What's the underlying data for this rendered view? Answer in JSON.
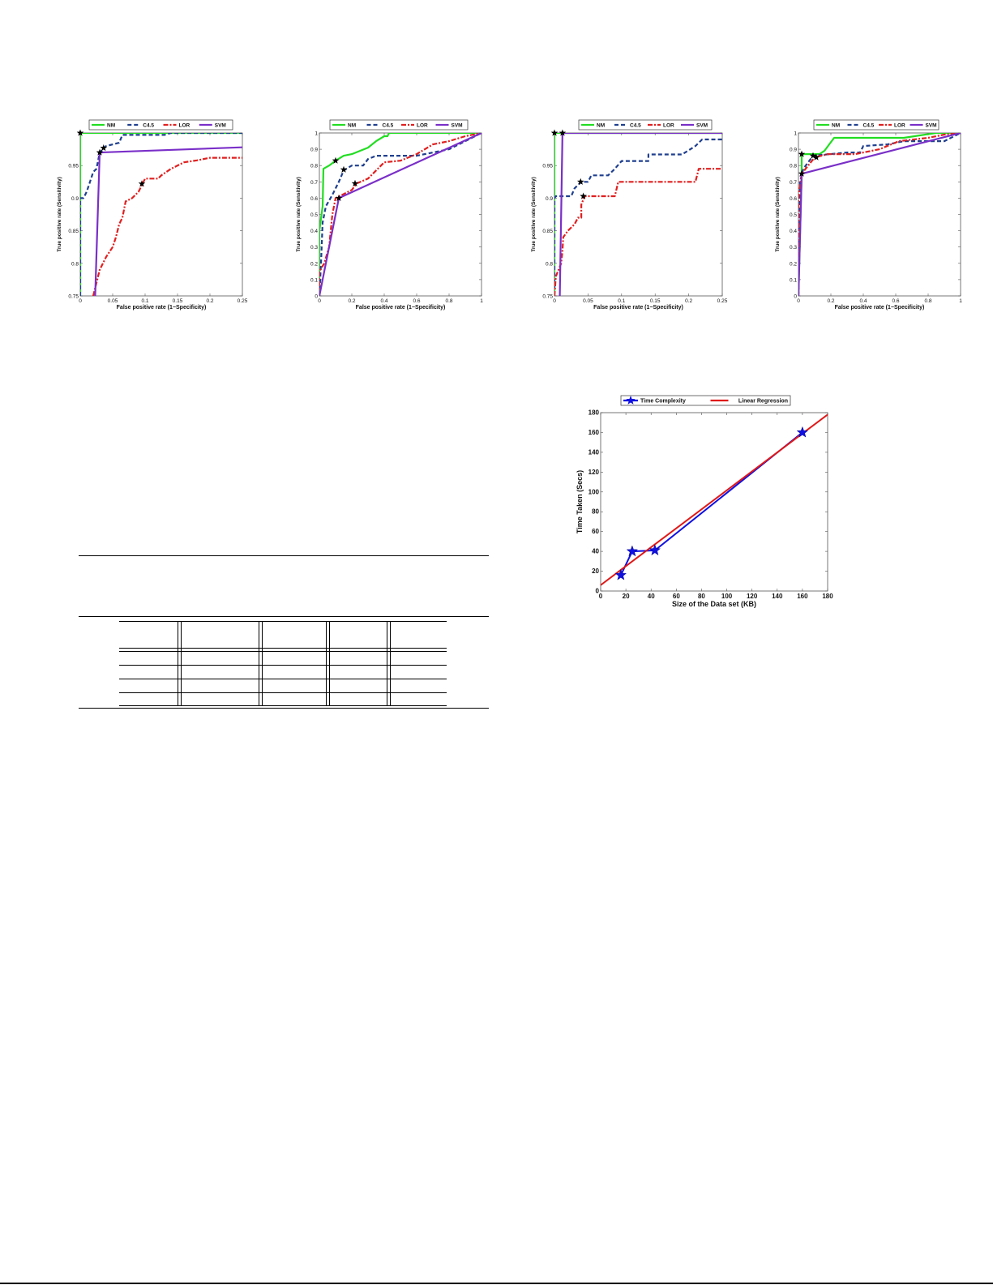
{
  "chart_data": [
    {
      "id": "roc1",
      "type": "line",
      "title": "",
      "xlabel": "False positive rate (1−Specificity)",
      "ylabel": "True positive rate (Sensitivity)",
      "xlim": [
        0,
        0.25
      ],
      "ylim": [
        0.75,
        1
      ],
      "xticks": [
        "0",
        "0.05",
        "0.1",
        "0.15",
        "0.2",
        "0.25"
      ],
      "yticks": [
        "0.75",
        "0.8",
        "0.85",
        "0.9",
        "0.95",
        ""
      ],
      "legend": [
        "NM",
        "C4.5",
        "LOR",
        "SVM"
      ],
      "legend_position": "top",
      "grid": false,
      "series": [
        {
          "name": "NM",
          "color": "#22dd22",
          "dash": "",
          "points": [
            [
              0,
              0.75
            ],
            [
              0,
              1
            ],
            [
              0.25,
              1
            ]
          ]
        },
        {
          "name": "C4.5",
          "color": "#1f3f8f",
          "dash": "5,3",
          "points": [
            [
              0,
              0.75
            ],
            [
              0,
              0.9
            ],
            [
              0.005,
              0.9
            ],
            [
              0.01,
              0.91
            ],
            [
              0.015,
              0.925
            ],
            [
              0.02,
              0.94
            ],
            [
              0.025,
              0.945
            ],
            [
              0.03,
              0.97
            ],
            [
              0.035,
              0.975
            ],
            [
              0.04,
              0.98
            ],
            [
              0.06,
              0.985
            ],
            [
              0.065,
              0.997
            ],
            [
              0.13,
              0.997
            ],
            [
              0.14,
              1
            ],
            [
              0.25,
              1
            ]
          ]
        },
        {
          "name": "LOR",
          "color": "#e02020",
          "dash": "6,2,2,2",
          "points": [
            [
              0.02,
              0.75
            ],
            [
              0.025,
              0.77
            ],
            [
              0.03,
              0.79
            ],
            [
              0.04,
              0.81
            ],
            [
              0.05,
              0.825
            ],
            [
              0.055,
              0.84
            ],
            [
              0.06,
              0.86
            ],
            [
              0.065,
              0.87
            ],
            [
              0.07,
              0.895
            ],
            [
              0.08,
              0.9
            ],
            [
              0.09,
              0.91
            ],
            [
              0.095,
              0.92
            ],
            [
              0.1,
              0.93
            ],
            [
              0.12,
              0.93
            ],
            [
              0.125,
              0.935
            ],
            [
              0.14,
              0.945
            ],
            [
              0.16,
              0.955
            ],
            [
              0.18,
              0.958
            ],
            [
              0.2,
              0.962
            ],
            [
              0.25,
              0.962
            ]
          ]
        },
        {
          "name": "SVM",
          "color": "#7a2fc8",
          "dash": "",
          "points": [
            [
              0.023,
              0.75
            ],
            [
              0.03,
              0.97
            ],
            [
              0.25,
              0.978
            ]
          ]
        }
      ],
      "markers": [
        [
          0,
          1
        ],
        [
          0.03,
          0.97
        ],
        [
          0.036,
          0.977
        ],
        [
          0.095,
          0.922
        ]
      ]
    },
    {
      "id": "roc2",
      "type": "line",
      "title": "",
      "xlabel": "False positive rate (1−Specificity)",
      "ylabel": "True positive rate (Sensitivity)",
      "xlim": [
        0,
        1
      ],
      "ylim": [
        0,
        1
      ],
      "xticks": [
        "0",
        "0.2",
        "0.4",
        "0.6",
        "0.8",
        "1"
      ],
      "yticks": [
        "0",
        "0.1",
        "0.2",
        "0.3",
        "0.4",
        "0.5",
        "0.6",
        "0.7",
        "0.8",
        "0.9",
        "1"
      ],
      "legend": [
        "NM",
        "C4.5",
        "LOR",
        "SVM"
      ],
      "legend_position": "top",
      "grid": false,
      "series": [
        {
          "name": "NM",
          "color": "#22dd22",
          "dash": "",
          "points": [
            [
              0,
              0
            ],
            [
              0,
              0.4
            ],
            [
              0.02,
              0.55
            ],
            [
              0.025,
              0.78
            ],
            [
              0.06,
              0.8
            ],
            [
              0.1,
              0.83
            ],
            [
              0.15,
              0.86
            ],
            [
              0.2,
              0.87
            ],
            [
              0.3,
              0.91
            ],
            [
              0.35,
              0.95
            ],
            [
              0.4,
              0.98
            ],
            [
              0.42,
              0.98
            ],
            [
              0.43,
              1
            ],
            [
              1,
              1
            ]
          ]
        },
        {
          "name": "C4.5",
          "color": "#1f3f8f",
          "dash": "5,3",
          "points": [
            [
              0,
              0
            ],
            [
              0.01,
              0.2
            ],
            [
              0.02,
              0.45
            ],
            [
              0.04,
              0.55
            ],
            [
              0.08,
              0.62
            ],
            [
              0.12,
              0.7
            ],
            [
              0.15,
              0.77
            ],
            [
              0.2,
              0.8
            ],
            [
              0.27,
              0.8
            ],
            [
              0.3,
              0.84
            ],
            [
              0.35,
              0.86
            ],
            [
              0.45,
              0.86
            ],
            [
              0.6,
              0.86
            ],
            [
              0.8,
              0.9
            ],
            [
              1,
              1
            ]
          ]
        },
        {
          "name": "LOR",
          "color": "#e02020",
          "dash": "6,2,2,2",
          "points": [
            [
              0,
              0
            ],
            [
              0,
              0.15
            ],
            [
              0.03,
              0.2
            ],
            [
              0.06,
              0.3
            ],
            [
              0.08,
              0.5
            ],
            [
              0.1,
              0.6
            ],
            [
              0.2,
              0.65
            ],
            [
              0.23,
              0.69
            ],
            [
              0.3,
              0.72
            ],
            [
              0.4,
              0.82
            ],
            [
              0.5,
              0.83
            ],
            [
              0.6,
              0.87
            ],
            [
              0.7,
              0.93
            ],
            [
              0.8,
              0.95
            ],
            [
              0.9,
              0.98
            ],
            [
              1,
              1
            ]
          ]
        },
        {
          "name": "SVM",
          "color": "#7a2fc8",
          "dash": "",
          "points": [
            [
              0,
              0
            ],
            [
              0.12,
              0.6
            ],
            [
              1,
              1
            ]
          ]
        }
      ],
      "markers": [
        [
          0.1,
          0.83
        ],
        [
          0.15,
          0.775
        ],
        [
          0.22,
          0.69
        ],
        [
          0.12,
          0.6
        ]
      ]
    },
    {
      "id": "roc3",
      "type": "line",
      "title": "",
      "xlabel": "False positive rate (1−Specificity)",
      "ylabel": "True positive rate (Sensitivity)",
      "xlim": [
        0,
        0.25
      ],
      "ylim": [
        0.75,
        1
      ],
      "xticks": [
        "0",
        "0.05",
        "0.1",
        "0.15",
        "0.2",
        "0.25"
      ],
      "yticks": [
        "0.75",
        "0.8",
        "0.85",
        "0.9",
        "0.95",
        ""
      ],
      "legend": [
        "NM",
        "C4.5",
        "LOR",
        "SVM"
      ],
      "legend_position": "top",
      "grid": false,
      "series": [
        {
          "name": "NM",
          "color": "#22dd22",
          "dash": "",
          "points": [
            [
              0,
              0.75
            ],
            [
              0,
              1
            ],
            [
              0.25,
              1
            ]
          ]
        },
        {
          "name": "C4.5",
          "color": "#1f3f8f",
          "dash": "5,3",
          "points": [
            [
              0,
              0.75
            ],
            [
              0,
              0.9
            ],
            [
              0.002,
              0.903
            ],
            [
              0.025,
              0.903
            ],
            [
              0.03,
              0.915
            ],
            [
              0.04,
              0.925
            ],
            [
              0.05,
              0.925
            ],
            [
              0.055,
              0.935
            ],
            [
              0.08,
              0.935
            ],
            [
              0.09,
              0.945
            ],
            [
              0.1,
              0.957
            ],
            [
              0.14,
              0.957
            ],
            [
              0.14,
              0.967
            ],
            [
              0.19,
              0.967
            ],
            [
              0.21,
              0.98
            ],
            [
              0.22,
              0.99
            ],
            [
              0.25,
              0.99
            ]
          ]
        },
        {
          "name": "LOR",
          "color": "#e02020",
          "dash": "6,2,2,2",
          "points": [
            [
              0,
              0.75
            ],
            [
              0.002,
              0.78
            ],
            [
              0.01,
              0.8
            ],
            [
              0.012,
              0.82
            ],
            [
              0.013,
              0.84
            ],
            [
              0.02,
              0.85
            ],
            [
              0.03,
              0.86
            ],
            [
              0.035,
              0.87
            ],
            [
              0.04,
              0.87
            ],
            [
              0.04,
              0.89
            ],
            [
              0.045,
              0.903
            ],
            [
              0.09,
              0.903
            ],
            [
              0.095,
              0.925
            ],
            [
              0.21,
              0.925
            ],
            [
              0.215,
              0.945
            ],
            [
              0.25,
              0.945
            ]
          ]
        },
        {
          "name": "SVM",
          "color": "#7a2fc8",
          "dash": "",
          "points": [
            [
              0.008,
              0.75
            ],
            [
              0.012,
              1
            ],
            [
              0.25,
              1
            ]
          ]
        }
      ],
      "markers": [
        [
          0,
          1
        ],
        [
          0.012,
          1
        ],
        [
          0.039,
          0.925
        ],
        [
          0.043,
          0.903
        ]
      ]
    },
    {
      "id": "roc4",
      "type": "line",
      "title": "",
      "xlabel": "False positive rate (1−Specificity)",
      "ylabel": "True positive rate (Sensitivity)",
      "xlim": [
        0,
        1
      ],
      "ylim": [
        0,
        1
      ],
      "xticks": [
        "0",
        "0.2",
        "0.4",
        "0.6",
        "0.8",
        "1"
      ],
      "yticks": [
        "0",
        "0.1",
        "0.2",
        "0.3",
        "0.4",
        "0.5",
        "0.6",
        "0.7",
        "0.8",
        "0.9",
        "1"
      ],
      "legend": [
        "NM",
        "C4.5",
        "LOR",
        "SVM"
      ],
      "legend_position": "top",
      "grid": false,
      "series": [
        {
          "name": "NM",
          "color": "#22dd22",
          "dash": "",
          "points": [
            [
              0,
              0
            ],
            [
              0.02,
              0.75
            ],
            [
              0.02,
              0.87
            ],
            [
              0.13,
              0.87
            ],
            [
              0.16,
              0.89
            ],
            [
              0.22,
              0.97
            ],
            [
              0.65,
              0.97
            ],
            [
              0.85,
              1
            ],
            [
              1,
              1
            ]
          ]
        },
        {
          "name": "C4.5",
          "color": "#1f3f8f",
          "dash": "5,3",
          "points": [
            [
              0,
              0
            ],
            [
              0.01,
              0.7
            ],
            [
              0.03,
              0.78
            ],
            [
              0.09,
              0.86
            ],
            [
              0.3,
              0.88
            ],
            [
              0.38,
              0.88
            ],
            [
              0.4,
              0.92
            ],
            [
              0.55,
              0.93
            ],
            [
              0.65,
              0.95
            ],
            [
              0.9,
              0.95
            ],
            [
              1,
              1
            ]
          ]
        },
        {
          "name": "LOR",
          "color": "#e02020",
          "dash": "6,2,2,2",
          "points": [
            [
              0,
              0
            ],
            [
              0,
              0.6
            ],
            [
              0.02,
              0.75
            ],
            [
              0.06,
              0.8
            ],
            [
              0.1,
              0.85
            ],
            [
              0.18,
              0.87
            ],
            [
              0.35,
              0.87
            ],
            [
              0.5,
              0.9
            ],
            [
              0.62,
              0.95
            ],
            [
              0.8,
              0.97
            ],
            [
              0.9,
              0.99
            ],
            [
              1,
              1
            ]
          ]
        },
        {
          "name": "SVM",
          "color": "#7a2fc8",
          "dash": "",
          "points": [
            [
              0,
              0
            ],
            [
              0.02,
              0.75
            ],
            [
              1,
              1
            ]
          ]
        }
      ],
      "markers": [
        [
          0.02,
          0.87
        ],
        [
          0.09,
          0.86
        ],
        [
          0.11,
          0.85
        ],
        [
          0.02,
          0.75
        ]
      ]
    },
    {
      "id": "time",
      "type": "line",
      "title": "",
      "xlabel": "Size of the Data set (KB)",
      "ylabel": "Time Taken (Secs)",
      "xlim": [
        0,
        180
      ],
      "ylim": [
        0,
        180
      ],
      "xticks": [
        "0",
        "20",
        "40",
        "60",
        "80",
        "100",
        "120",
        "140",
        "160",
        "180"
      ],
      "yticks": [
        "0",
        "20",
        "40",
        "60",
        "80",
        "100",
        "120",
        "140",
        "160",
        "180"
      ],
      "legend": [
        "Time Complexity",
        "Linear Regression"
      ],
      "legend_position": "top",
      "grid": false,
      "series": [
        {
          "name": "Time Complexity",
          "color": "#1010e0",
          "dash": "",
          "marker": "star",
          "points": [
            [
              16,
              16
            ],
            [
              25,
              40
            ],
            [
              43,
              41
            ],
            [
              160,
              160
            ]
          ]
        },
        {
          "name": "Linear Regression",
          "color": "#e01818",
          "dash": "",
          "points": [
            [
              0,
              6
            ],
            [
              180,
              178
            ]
          ]
        }
      ],
      "markers": []
    }
  ],
  "table": {
    "header": [
      "",
      "",
      "",
      "",
      ""
    ],
    "rows": [
      [
        "",
        "",
        "",
        "",
        ""
      ],
      [
        "",
        "",
        "",
        "",
        ""
      ],
      [
        "",
        "",
        "",
        "",
        ""
      ],
      [
        "",
        "",
        "",
        "",
        ""
      ]
    ]
  }
}
